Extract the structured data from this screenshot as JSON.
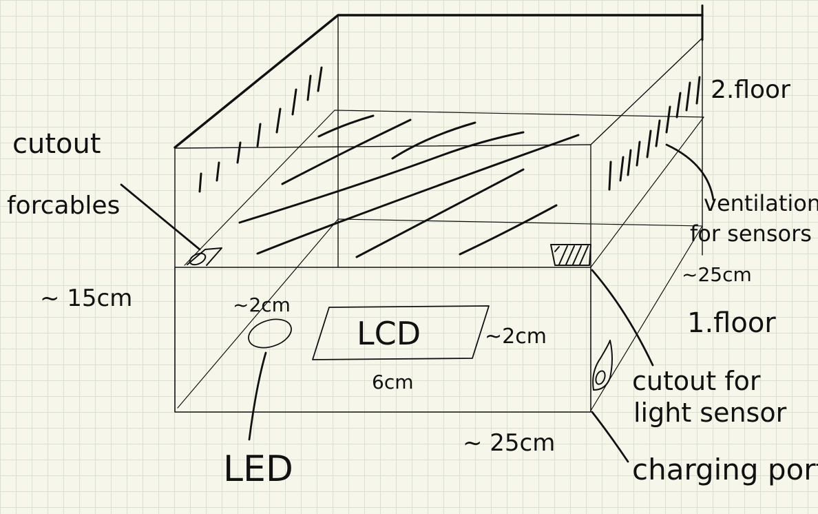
{
  "labels": {
    "cutout_cables_line1": "cutout",
    "cutout_cables_line2": "forcables",
    "height": "~ 15cm",
    "led_size": "~2cm",
    "lcd": "LCD",
    "lcd_height": "~2cm",
    "lcd_width": "6cm",
    "led": "LED",
    "width": "~ 25cm",
    "second_floor": "2.floor",
    "ventilation_line1": "ventilation",
    "ventilation_line2": "for sensors",
    "depth": "~25cm",
    "first_floor": "1.floor",
    "cutout_light_line1": "cutout for",
    "cutout_light_line2": "light sensor",
    "charging_port": "charging port"
  },
  "colors": {
    "ink": "#111111",
    "paper": "#f7f6ea",
    "grid": "#d9e0cf"
  }
}
